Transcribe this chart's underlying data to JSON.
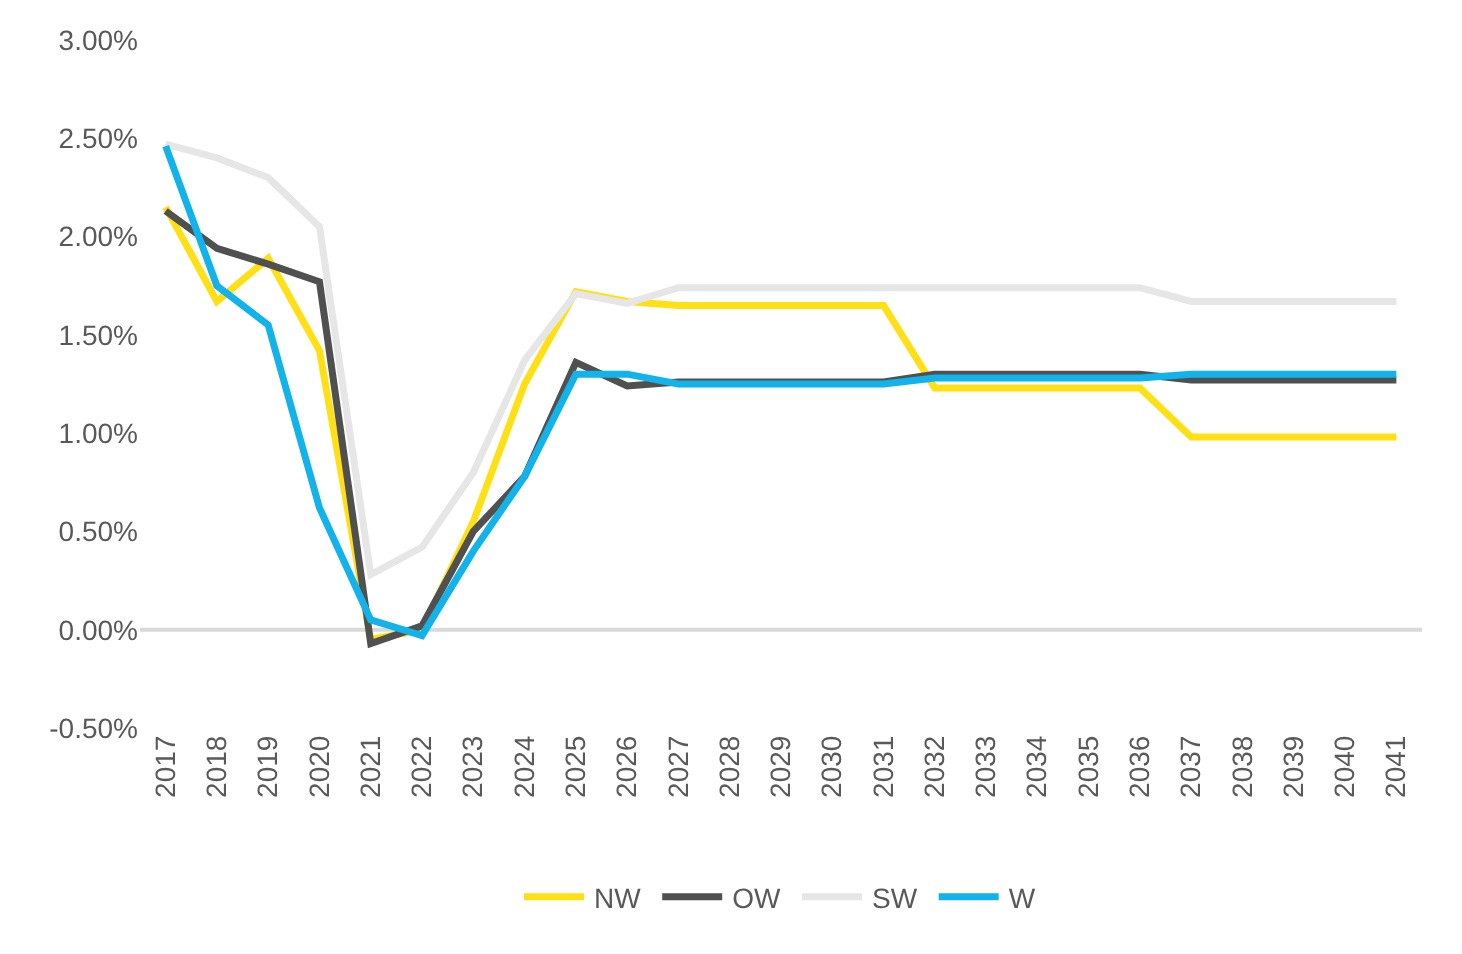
{
  "chart_data": {
    "type": "line",
    "categories": [
      "2017",
      "2018",
      "2019",
      "2020",
      "2021",
      "2022",
      "2023",
      "2024",
      "2025",
      "2026",
      "2027",
      "2028",
      "2029",
      "2030",
      "2031",
      "2032",
      "2033",
      "2034",
      "2035",
      "2036",
      "2037",
      "2038",
      "2039",
      "2040",
      "2041"
    ],
    "series": [
      {
        "name": "NW",
        "color": "#ffe014",
        "values": [
          2.15,
          1.67,
          1.89,
          1.42,
          -0.05,
          0.0,
          0.55,
          1.25,
          1.72,
          1.67,
          1.65,
          1.65,
          1.65,
          1.65,
          1.65,
          1.23,
          1.23,
          1.23,
          1.23,
          1.23,
          0.98,
          0.98,
          0.98,
          0.98,
          0.98
        ]
      },
      {
        "name": "OW",
        "color": "#505050",
        "values": [
          2.13,
          1.94,
          1.86,
          1.77,
          -0.07,
          0.02,
          0.5,
          0.78,
          1.36,
          1.24,
          1.26,
          1.26,
          1.26,
          1.26,
          1.26,
          1.3,
          1.3,
          1.3,
          1.3,
          1.3,
          1.27,
          1.27,
          1.27,
          1.27,
          1.27
        ]
      },
      {
        "name": "SW",
        "color": "#e6e6e6",
        "values": [
          2.47,
          2.4,
          2.3,
          2.05,
          0.28,
          0.42,
          0.8,
          1.37,
          1.71,
          1.66,
          1.74,
          1.74,
          1.74,
          1.74,
          1.74,
          1.74,
          1.74,
          1.74,
          1.74,
          1.74,
          1.67,
          1.67,
          1.67,
          1.67,
          1.67
        ]
      },
      {
        "name": "W",
        "color": "#12b2ea",
        "values": [
          2.46,
          1.75,
          1.55,
          0.62,
          0.05,
          -0.03,
          0.4,
          0.78,
          1.3,
          1.3,
          1.25,
          1.25,
          1.25,
          1.25,
          1.25,
          1.28,
          1.28,
          1.28,
          1.28,
          1.28,
          1.3,
          1.3,
          1.3,
          1.3,
          1.3
        ]
      }
    ],
    "ylim": [
      -0.5,
      3.0
    ],
    "yticks": [
      {
        "value": -0.5,
        "label": "-0.50%"
      },
      {
        "value": 0,
        "label": "0.00%"
      },
      {
        "value": 0.5,
        "label": "0.50%"
      },
      {
        "value": 1.0,
        "label": "1.00%"
      },
      {
        "value": 1.5,
        "label": "1.50%"
      },
      {
        "value": 2.0,
        "label": "2.00%"
      },
      {
        "value": 2.5,
        "label": "2.50%"
      },
      {
        "value": 3.0,
        "label": "3.00%"
      }
    ],
    "ref_lines": [
      {
        "axis": "y",
        "value": 0,
        "color": "#d9d9d9"
      }
    ],
    "grid": false,
    "legend": "bottom",
    "marker": "none",
    "line_style": "solid"
  }
}
